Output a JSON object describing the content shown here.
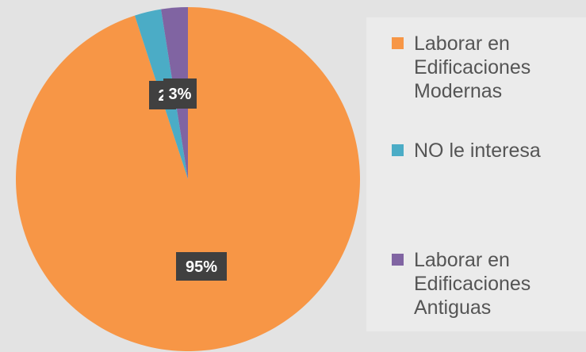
{
  "chart_data": {
    "type": "pie",
    "slices": [
      {
        "label": " Laborar en\nEdificaciones\nModernas",
        "value": 95,
        "display": "95%",
        "color": "#f79646"
      },
      {
        "label": "NO le interesa",
        "value": 2.5,
        "display": "2",
        "color": "#4bacc6"
      },
      {
        "label": "Laborar en\nEdificaciones\nAntiguas",
        "value": 2.5,
        "display": "3%",
        "color": "#8064a2"
      }
    ],
    "legend_position": "right"
  }
}
